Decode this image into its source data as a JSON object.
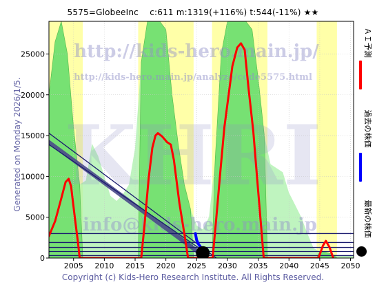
{
  "header": {
    "title": "5575=GlobeeInc　 c:611 m:1319(+116%) t:544(-11%) ★★"
  },
  "side_label": "Generated on Monday 2026/1/5.",
  "footer": "Copyright (c) Kids-Hero Research Institute. All Rights Reserved.",
  "watermarks": {
    "url_main": "http://kids-hero.main.jp/",
    "url_page": "http://kids-hero.main.jp/analyze/code5575.html",
    "big": "KHRI",
    "email": "info@kids-hero.main.jp"
  },
  "legend": [
    {
      "label": "ＡＩ予測",
      "color": "#ff0000",
      "kind": "line"
    },
    {
      "label": "過去の株価",
      "color": "#0000ff",
      "kind": "line"
    },
    {
      "label": "最新の株価",
      "color": "#000000",
      "kind": "dot"
    }
  ],
  "colors": {
    "ai_line": "#ff0000",
    "past_price": "#0000ff",
    "trend_lines": "#1a1a6e",
    "band_fill": "#4a4a8a",
    "green_fill": "#66dd66",
    "light_green_fill": "#aaf0aa",
    "yellow_fill": "#ffff99",
    "axis_text": "#000000"
  },
  "chart_data": {
    "type": "line",
    "title": "5575=GlobeeInc　 c:611 m:1319(+116%) t:544(-11%) ★★",
    "xlabel": "",
    "ylabel": "",
    "xlim": [
      2001,
      2050.5
    ],
    "ylim": [
      0,
      29000
    ],
    "x_ticks": [
      2005,
      2010,
      2015,
      2020,
      2025,
      2030,
      2035,
      2040,
      2045,
      2050
    ],
    "y_ticks": [
      0,
      5000,
      10000,
      15000,
      20000,
      25000
    ],
    "grid": true,
    "legend_placement": "right-outside",
    "series": [
      {
        "name": "ＡＩ予測",
        "color": "#ff0000",
        "points": [
          [
            2001,
            2700
          ],
          [
            2002,
            4500
          ],
          [
            2003,
            7300
          ],
          [
            2003.7,
            9300
          ],
          [
            2004.2,
            9700
          ],
          [
            2004.6,
            8800
          ],
          [
            2005.2,
            5000
          ],
          [
            2005.7,
            2000
          ],
          [
            2006.0,
            0
          ],
          [
            2016.0,
            0
          ],
          [
            2016.5,
            3800
          ],
          [
            2017.2,
            9800
          ],
          [
            2017.8,
            13500
          ],
          [
            2018.3,
            15000
          ],
          [
            2018.7,
            15300
          ],
          [
            2019.4,
            14900
          ],
          [
            2020.2,
            14200
          ],
          [
            2020.8,
            13900
          ],
          [
            2021.3,
            12000
          ],
          [
            2022.2,
            6700
          ],
          [
            2023.0,
            3000
          ],
          [
            2023.6,
            0
          ],
          [
            2027.6,
            0
          ],
          [
            2028.2,
            5000
          ],
          [
            2028.9,
            11000
          ],
          [
            2029.5,
            16000
          ],
          [
            2030.2,
            20000
          ],
          [
            2030.8,
            23500
          ],
          [
            2031.6,
            25800
          ],
          [
            2032.2,
            26300
          ],
          [
            2032.8,
            25500
          ],
          [
            2033.4,
            21000
          ],
          [
            2034.2,
            15500
          ],
          [
            2034.8,
            10000
          ],
          [
            2035.4,
            4500
          ],
          [
            2035.9,
            0
          ],
          [
            2044.8,
            0
          ],
          [
            2045.5,
            1500
          ],
          [
            2046.0,
            2100
          ],
          [
            2046.6,
            1300
          ],
          [
            2047.2,
            0
          ]
        ]
      },
      {
        "name": "過去の株価",
        "color": "#0000ff",
        "points": [
          [
            2024.8,
            3000
          ],
          [
            2025.0,
            2200
          ],
          [
            2025.3,
            1700
          ],
          [
            2025.6,
            1400
          ],
          [
            2025.85,
            900
          ],
          [
            2026.0,
            611
          ]
        ]
      }
    ],
    "trend_lines": [
      {
        "from": [
          2001,
          15300
        ],
        "to": [
          2028.2,
          0
        ]
      },
      {
        "from": [
          2001,
          13900
        ],
        "to": [
          2026.0,
          900
        ]
      },
      {
        "from": [
          2001,
          300
        ],
        "to": [
          2050.5,
          300
        ]
      },
      {
        "from": [
          2001,
          800
        ],
        "to": [
          2050.5,
          800
        ]
      },
      {
        "from": [
          2001,
          1300
        ],
        "to": [
          2050.5,
          1300
        ]
      },
      {
        "from": [
          2001,
          1900
        ],
        "to": [
          2050.5,
          1900
        ]
      },
      {
        "from": [
          2001,
          3000
        ],
        "to": [
          2050.5,
          3000
        ]
      }
    ],
    "band": {
      "upper": [
        [
          2001,
          14500
        ],
        [
          2026.3,
          500
        ]
      ],
      "lower": [
        [
          2001,
          13900
        ],
        [
          2026.0,
          0
        ]
      ]
    },
    "shaded_regions": {
      "yellow": [
        [
          2001,
          2006.5
        ],
        [
          2015.5,
          2024.5
        ],
        [
          2027.5,
          2036.5
        ],
        [
          2044.5,
          2047.8
        ]
      ],
      "green_envelope": [
        [
          2001,
          20000
        ],
        [
          2002,
          26500
        ],
        [
          2003,
          29000
        ],
        [
          2004,
          25000
        ],
        [
          2005,
          16000
        ],
        [
          2006,
          9000
        ],
        [
          2007,
          9500
        ],
        [
          2008,
          14000
        ],
        [
          2009,
          12500
        ],
        [
          2010,
          10000
        ],
        [
          2011,
          7600
        ],
        [
          2012,
          7000
        ],
        [
          2013,
          7800
        ],
        [
          2014,
          9000
        ],
        [
          2015,
          13500
        ],
        [
          2016,
          24000
        ],
        [
          2017,
          29000
        ],
        [
          2018,
          29000
        ],
        [
          2019,
          29000
        ],
        [
          2020,
          28000
        ],
        [
          2021,
          20000
        ],
        [
          2022,
          14000
        ],
        [
          2023,
          9000
        ],
        [
          2024,
          6000
        ],
        [
          2025,
          4000
        ],
        [
          2026,
          3500
        ],
        [
          2027,
          5000
        ],
        [
          2028,
          12000
        ],
        [
          2029,
          25000
        ],
        [
          2030,
          29000
        ],
        [
          2031,
          29000
        ],
        [
          2032,
          29000
        ],
        [
          2033,
          29000
        ],
        [
          2034,
          28000
        ],
        [
          2035,
          22000
        ],
        [
          2036,
          15000
        ],
        [
          2037,
          11500
        ],
        [
          2038,
          11000
        ],
        [
          2039,
          10500
        ],
        [
          2040,
          8000
        ],
        [
          2041,
          6500
        ],
        [
          2042,
          5000
        ],
        [
          2043,
          3000
        ],
        [
          2044,
          1200
        ],
        [
          2045,
          800
        ],
        [
          2046,
          700
        ],
        [
          2047,
          500
        ],
        [
          2048,
          300
        ],
        [
          2050.5,
          300
        ]
      ]
    },
    "latest_point": [
      2026.0,
      611
    ]
  }
}
